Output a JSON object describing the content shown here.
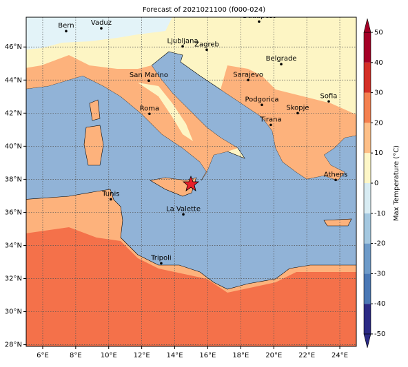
{
  "title": "Forecast of 2021021100 (f000-024)",
  "map": {
    "lon_range": [
      5,
      25
    ],
    "lat_range": [
      27.9,
      47.8
    ],
    "lon_ticks": [
      {
        "value": 6,
        "label": "6°E"
      },
      {
        "value": 8,
        "label": "8°E"
      },
      {
        "value": 10,
        "label": "10°E"
      },
      {
        "value": 12,
        "label": "12°E"
      },
      {
        "value": 14,
        "label": "14°E"
      },
      {
        "value": 16,
        "label": "16°E"
      },
      {
        "value": 18,
        "label": "18°E"
      },
      {
        "value": 20,
        "label": "20°E"
      },
      {
        "value": 22,
        "label": "22°E"
      },
      {
        "value": 24,
        "label": "24°E"
      }
    ],
    "lat_ticks": [
      {
        "value": 28,
        "label": "28°N"
      },
      {
        "value": 30,
        "label": "30°N"
      },
      {
        "value": 32,
        "label": "32°N"
      },
      {
        "value": 34,
        "label": "34°N"
      },
      {
        "value": 36,
        "label": "36°N"
      },
      {
        "value": 38,
        "label": "38°N"
      },
      {
        "value": 40,
        "label": "40°N"
      },
      {
        "value": 42,
        "label": "42°N"
      },
      {
        "value": 44,
        "label": "44°N"
      },
      {
        "value": 46,
        "label": "46°N"
      }
    ],
    "cities": [
      {
        "name": "Bern",
        "lon": 7.42,
        "lat": 46.96
      },
      {
        "name": "Vaduz",
        "lon": 9.55,
        "lat": 47.13
      },
      {
        "name": "Budapest",
        "lon": 19.11,
        "lat": 47.54
      },
      {
        "name": "Ljubljana",
        "lon": 14.48,
        "lat": 46.04
      },
      {
        "name": "Zagreb",
        "lon": 15.94,
        "lat": 45.83
      },
      {
        "name": "San Marino",
        "lon": 12.43,
        "lat": 43.96
      },
      {
        "name": "Belgrade",
        "lon": 20.45,
        "lat": 44.96
      },
      {
        "name": "Sarajevo",
        "lon": 18.45,
        "lat": 44.0
      },
      {
        "name": "Roma",
        "lon": 12.47,
        "lat": 41.96
      },
      {
        "name": "Podgorica",
        "lon": 19.28,
        "lat": 42.5
      },
      {
        "name": "Skopje",
        "lon": 21.45,
        "lat": 42.0
      },
      {
        "name": "Sofia",
        "lon": 23.33,
        "lat": 42.71
      },
      {
        "name": "Tirana",
        "lon": 19.82,
        "lat": 41.29
      },
      {
        "name": "Athens",
        "lon": 23.75,
        "lat": 37.96
      },
      {
        "name": "Tunis",
        "lon": 10.13,
        "lat": 36.79
      },
      {
        "name": "La Valette",
        "lon": 14.52,
        "lat": 35.88
      },
      {
        "name": "Tripoli",
        "lon": 13.18,
        "lat": 32.92
      }
    ]
  },
  "colorbar": {
    "label": "Max Temperature (°C)",
    "lim": [
      -50,
      50
    ],
    "ticks": [
      -50,
      -40,
      -30,
      -20,
      -10,
      0,
      10,
      20,
      30,
      40,
      50
    ],
    "colors": [
      "#2b2a85",
      "#4a78b5",
      "#6e9bc9",
      "#a4c8e0",
      "#d8ecf3",
      "#fdf7c8",
      "#fdbf88",
      "#f4804f",
      "#d42f26",
      "#a50026"
    ]
  }
}
